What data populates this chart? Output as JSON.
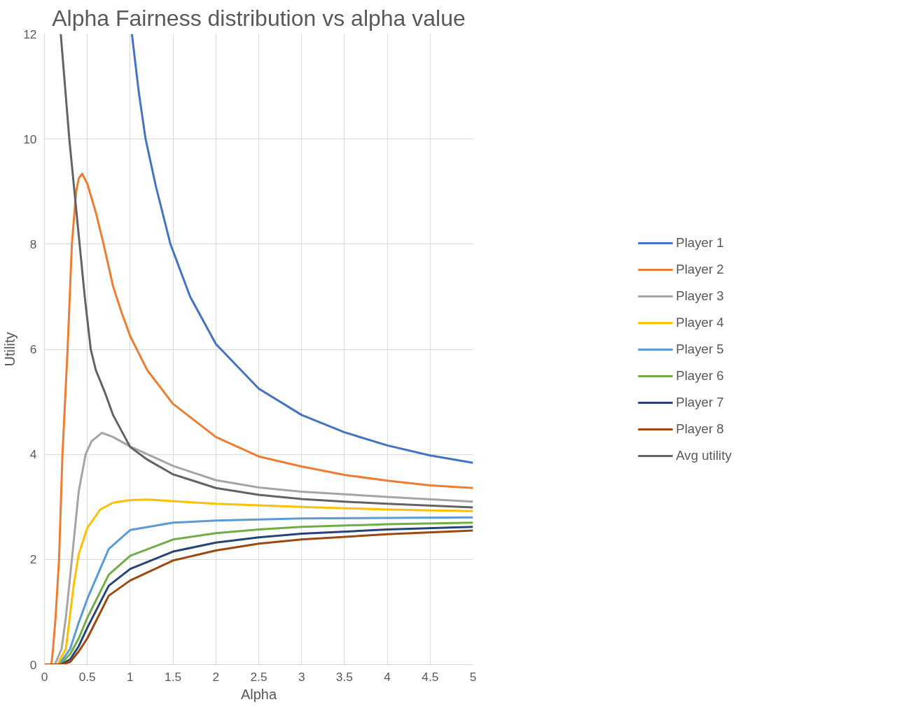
{
  "chart_data": {
    "type": "line",
    "title": "Alpha Fairness distribution vs alpha value",
    "xlabel": "Alpha",
    "ylabel": "Utility",
    "xlim": [
      0,
      5
    ],
    "ylim": [
      0,
      12
    ],
    "xticks": [
      0,
      0.5,
      1,
      1.5,
      2,
      2.5,
      3,
      3.5,
      4,
      4.5,
      5
    ],
    "yticks": [
      0,
      2,
      4,
      6,
      8,
      10,
      12
    ],
    "grid": true,
    "legend": "right",
    "marker": "none",
    "line_style": "solid",
    "series": [
      {
        "name": "Player 1",
        "color": "#4472c4",
        "x": [
          1.02,
          1.1,
          1.18,
          1.3,
          1.47,
          1.7,
          2,
          2.5,
          3,
          3.5,
          4,
          4.5,
          5
        ],
        "values": [
          12,
          10.9,
          10,
          9.1,
          8,
          7,
          6.1,
          5.25,
          4.75,
          4.42,
          4.17,
          3.98,
          3.84
        ]
      },
      {
        "name": "Player 2",
        "color": "#ed7d31",
        "x": [
          0,
          0.08,
          0.1,
          0.13,
          0.17,
          0.21,
          0.27,
          0.32,
          0.37,
          0.4,
          0.44,
          0.5,
          0.6,
          0.69,
          0.8,
          0.9,
          1,
          1.2,
          1.5,
          2,
          2.5,
          3,
          3.5,
          4,
          4.5,
          5
        ],
        "values": [
          0,
          0,
          0.3,
          0.9,
          2,
          4,
          6,
          8,
          9,
          9.25,
          9.34,
          9.15,
          8.6,
          8,
          7.2,
          6.7,
          6.25,
          5.6,
          4.96,
          4.33,
          3.96,
          3.77,
          3.61,
          3.5,
          3.41,
          3.36
        ]
      },
      {
        "name": "Player 3",
        "color": "#a5a5a5",
        "x": [
          0,
          0.12,
          0.2,
          0.25,
          0.32,
          0.4,
          0.48,
          0.55,
          0.67,
          0.8,
          1,
          1.5,
          2,
          2.5,
          3,
          4,
          5
        ],
        "values": [
          0,
          0,
          0.3,
          0.9,
          2,
          3.3,
          4,
          4.25,
          4.41,
          4.33,
          4.15,
          3.78,
          3.51,
          3.37,
          3.29,
          3.19,
          3.1
        ]
      },
      {
        "name": "Player 4",
        "color": "#ffc000",
        "x": [
          0,
          0.15,
          0.25,
          0.34,
          0.4,
          0.5,
          0.65,
          0.8,
          1,
          1.2,
          1.5,
          2,
          3,
          4,
          5
        ],
        "values": [
          0,
          0,
          0.3,
          1.5,
          2.1,
          2.6,
          2.95,
          3.08,
          3.13,
          3.14,
          3.11,
          3.06,
          3,
          2.95,
          2.92
        ]
      },
      {
        "name": "Player 5",
        "color": "#5b9bd5",
        "x": [
          0,
          0.17,
          0.3,
          0.4,
          0.5,
          0.75,
          1,
          1.5,
          2,
          3,
          4,
          5
        ],
        "values": [
          0,
          0,
          0.3,
          0.8,
          1.25,
          2.2,
          2.56,
          2.7,
          2.74,
          2.78,
          2.79,
          2.8
        ]
      },
      {
        "name": "Player 6",
        "color": "#70ad47",
        "x": [
          0,
          0.18,
          0.3,
          0.4,
          0.5,
          0.75,
          1,
          1.5,
          2,
          2.5,
          3,
          4,
          5
        ],
        "values": [
          0,
          0,
          0.2,
          0.5,
          0.89,
          1.71,
          2.07,
          2.38,
          2.5,
          2.57,
          2.62,
          2.67,
          2.7
        ]
      },
      {
        "name": "Player 7",
        "color": "#264478",
        "x": [
          0,
          0.19,
          0.3,
          0.4,
          0.5,
          0.75,
          1,
          1.5,
          2,
          2.5,
          3,
          4,
          5
        ],
        "values": [
          0,
          0,
          0.1,
          0.35,
          0.7,
          1.5,
          1.82,
          2.15,
          2.32,
          2.42,
          2.49,
          2.57,
          2.62
        ]
      },
      {
        "name": "Player 8",
        "color": "#9e480e",
        "x": [
          0,
          0.2,
          0.3,
          0.4,
          0.5,
          0.75,
          1,
          1.5,
          2,
          2.5,
          3,
          4,
          5
        ],
        "values": [
          0,
          0,
          0.05,
          0.25,
          0.5,
          1.31,
          1.6,
          1.98,
          2.17,
          2.3,
          2.38,
          2.48,
          2.55
        ]
      },
      {
        "name": "Avg utility",
        "color": "#636363",
        "x": [
          0.19,
          0.29,
          0.35,
          0.41,
          0.47,
          0.54,
          0.6,
          0.7,
          0.8,
          1,
          1.2,
          1.5,
          2,
          2.5,
          3,
          3.5,
          4,
          5
        ],
        "values": [
          12,
          10,
          9,
          8,
          7,
          6,
          5.6,
          5.2,
          4.75,
          4.14,
          3.9,
          3.62,
          3.36,
          3.23,
          3.15,
          3.1,
          3.06,
          2.99
        ]
      }
    ]
  }
}
